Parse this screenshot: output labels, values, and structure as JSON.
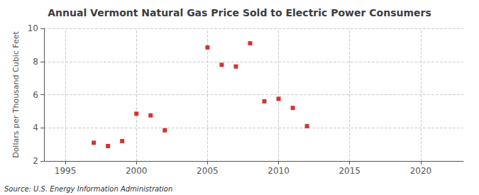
{
  "chart_data": {
    "type": "scatter",
    "title": "Annual Vermont Natural Gas Price Sold to Electric Power Consumers",
    "ylabel": "Dollars per Thousand Cubic Feet",
    "annotation": "Source: U.S. Energy Information Administration",
    "x": [
      1997,
      1998,
      1999,
      2000,
      2001,
      2002,
      2005,
      2006,
      2007,
      2008,
      2009,
      2010,
      2011,
      2012
    ],
    "values": [
      3.1,
      2.9,
      3.2,
      4.85,
      4.75,
      3.85,
      8.85,
      7.8,
      7.7,
      9.1,
      5.6,
      5.75,
      5.2,
      4.1
    ],
    "color": "#cc0000",
    "marker": "square",
    "xlim": [
      1993.5,
      2023
    ],
    "xticks": [
      1995,
      2000,
      2005,
      2010,
      2015,
      2020
    ],
    "ylim": [
      2,
      10
    ],
    "yticks": [
      2,
      4,
      6,
      8,
      10
    ],
    "grid": true
  }
}
